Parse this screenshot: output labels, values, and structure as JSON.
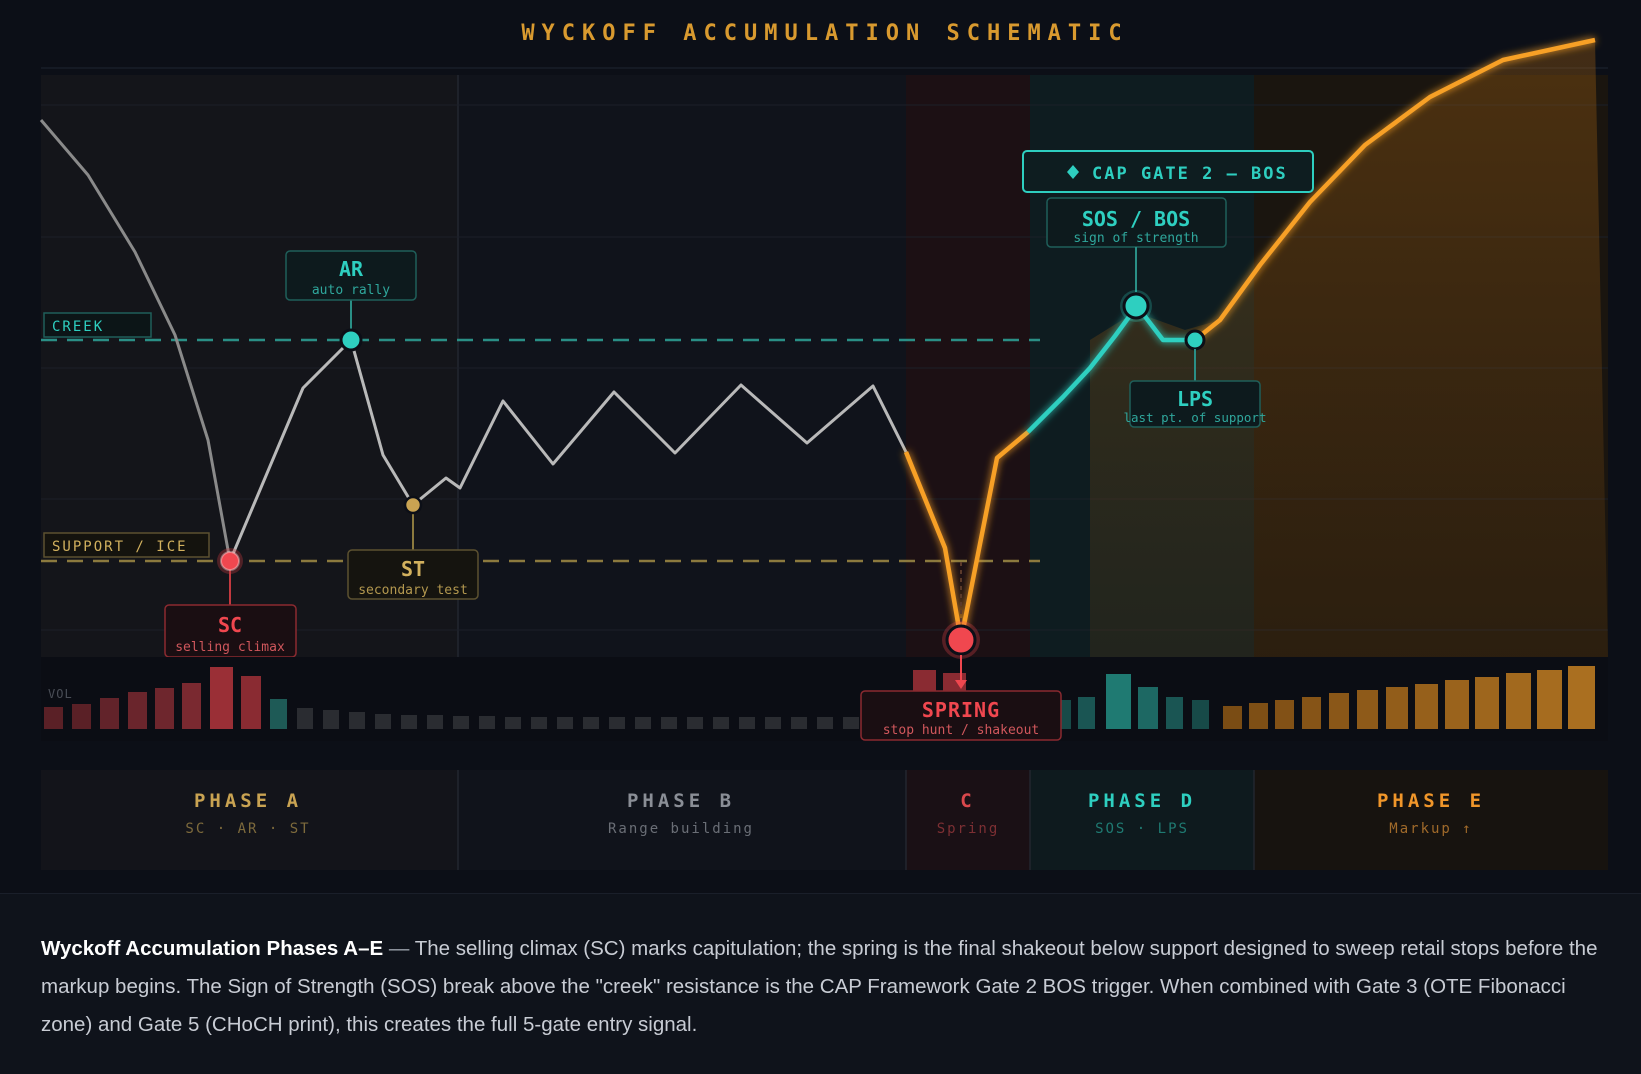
{
  "title": "WYCKOFF ACCUMULATION SCHEMATIC",
  "levels": {
    "creek": "CREEK",
    "support": "SUPPORT / ICE"
  },
  "gate": {
    "icon": "diamond",
    "label": "CAP GATE 2 — BOS"
  },
  "events": {
    "sc": {
      "code": "SC",
      "desc": "selling climax"
    },
    "ar": {
      "code": "AR",
      "desc": "auto rally"
    },
    "st": {
      "code": "ST",
      "desc": "secondary test"
    },
    "spring": {
      "code": "SPRING",
      "desc": "stop hunt / shakeout"
    },
    "sos": {
      "code": "SOS / BOS",
      "desc": "sign of strength"
    },
    "lps": {
      "code": "LPS",
      "desc": "last pt. of support"
    }
  },
  "volume_label": "VOL",
  "phases": [
    {
      "name": "PHASE A",
      "sub": "SC · AR · ST",
      "color": "#c9a352"
    },
    {
      "name": "PHASE B",
      "sub": "Range building",
      "color": "#8a8e96"
    },
    {
      "name": "C",
      "sub": "Spring",
      "color": "#d9484c"
    },
    {
      "name": "PHASE D",
      "sub": "SOS · LPS",
      "color": "#2ecfc0"
    },
    {
      "name": "PHASE E",
      "sub": "Markup ↑",
      "color": "#f0962a"
    }
  ],
  "colors": {
    "gold": "#c9a352",
    "teal": "#2ecfc0",
    "red": "#f0474f",
    "orange": "#f7a025",
    "gray": "#b9b9b9"
  },
  "caption": {
    "title": "Wyckoff Accumulation Phases A–E",
    "sep": " — ",
    "text": "The selling climax (SC) marks capitulation; the spring is the final shakeout below support designed to sweep retail stops before the markup begins. The Sign of Strength (SOS) break above the \"creek\" resistance is the CAP Framework Gate 2 BOS trigger. When combined with Gate 3 (OTE Fibonacci zone) and Gate 5 (CHoCH print), this creates the full 5-gate entry signal."
  }
}
